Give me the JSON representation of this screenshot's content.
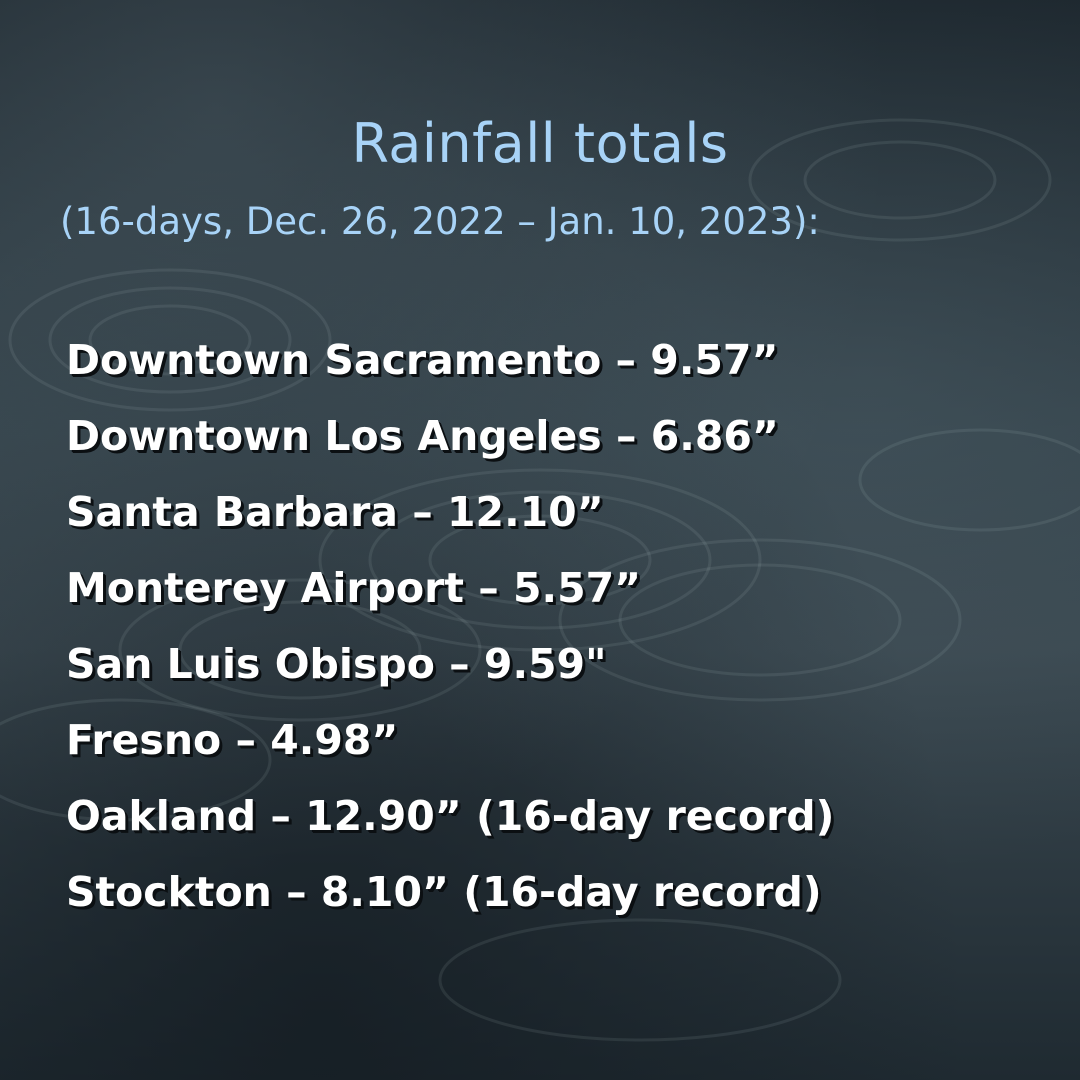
{
  "title": "Rainfall totals",
  "subtitle": "(16-days, Dec. 26, 2022 – Jan. 10, 2023):",
  "totals": [
    "Downtown Sacramento – 9.57”",
    "Downtown Los Angeles – 6.86”",
    "Santa Barbara – 12.10”",
    "Monterey Airport – 5.57”",
    "San Luis Obispo – 9.59\"",
    "Fresno – 4.98”",
    "Oakland – 12.90” (16-day record)",
    "Stockton – 8.10” (16-day record)"
  ],
  "colors": {
    "title": "#a8d3f7",
    "list_text": "#ffffff",
    "background": "#253139"
  }
}
